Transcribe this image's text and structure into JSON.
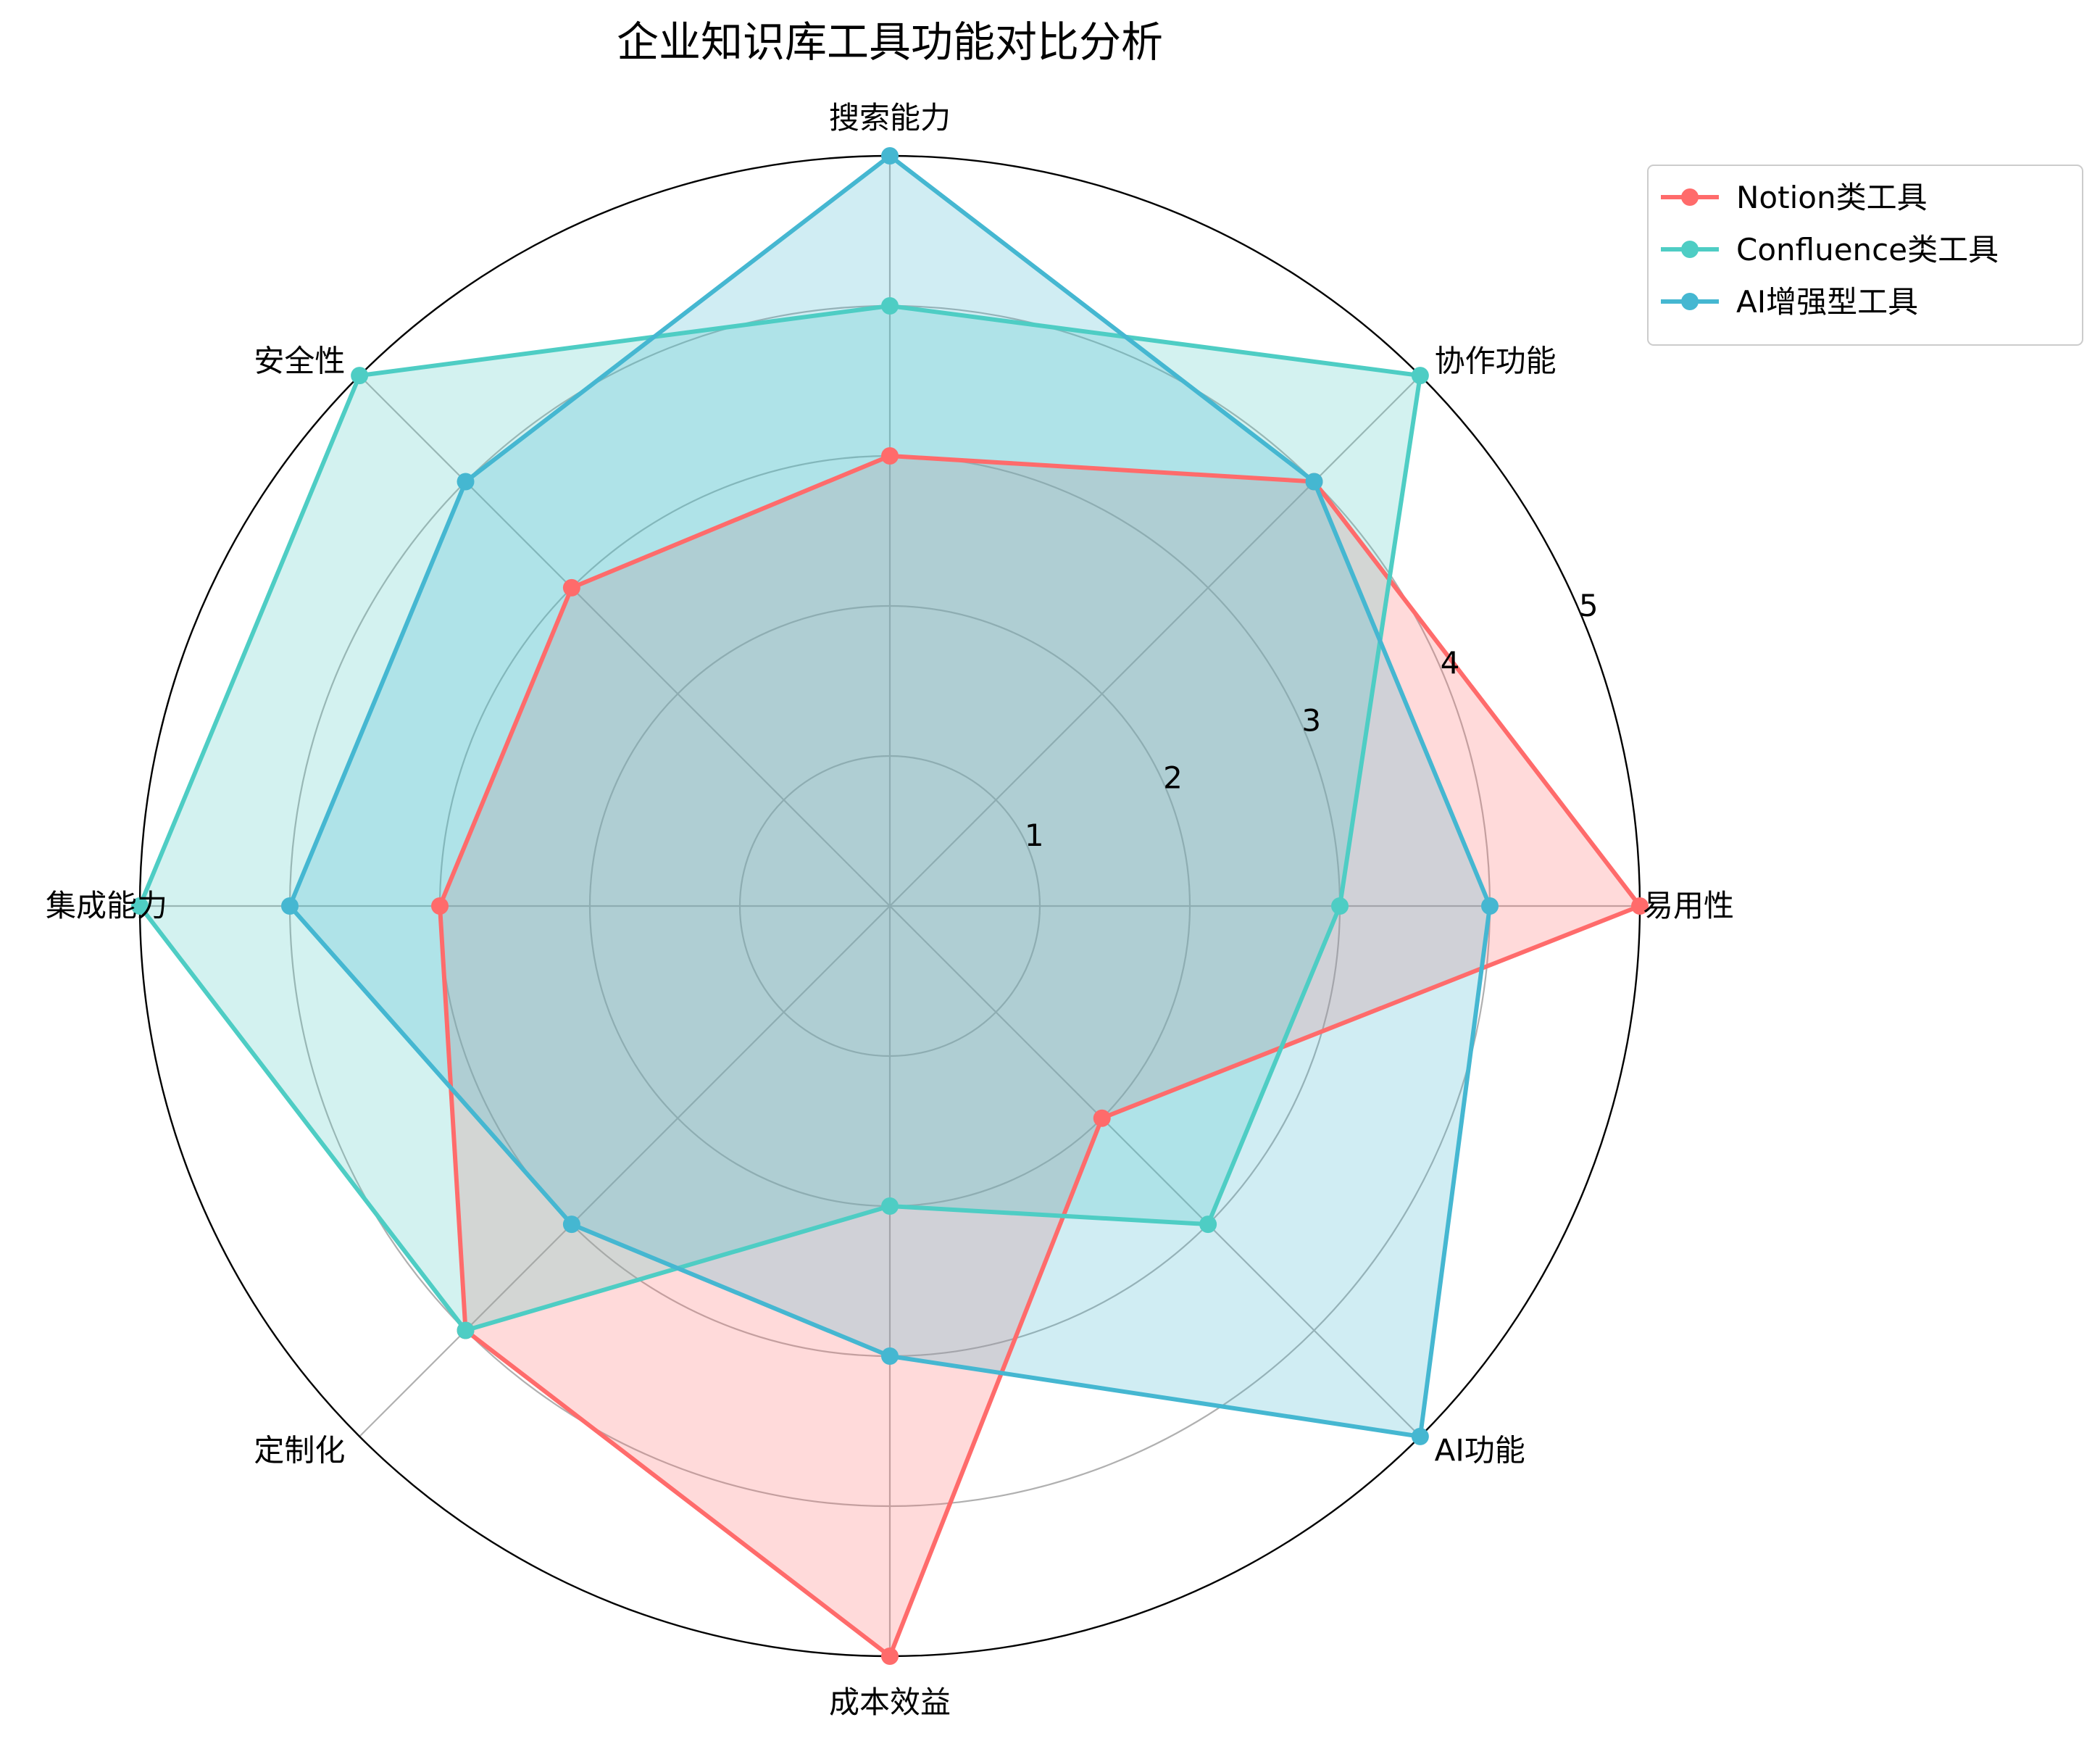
{
  "chart_data": {
    "type": "radar",
    "title": "企业知识库工具功能对比分析",
    "categories": [
      "易用性",
      "协作功能",
      "搜索能力",
      "安全性",
      "集成能力",
      "定制化",
      "成本效益",
      "AI功能"
    ],
    "rlim": [
      0,
      5
    ],
    "rticks": [
      "1",
      "2",
      "3",
      "4",
      "5"
    ],
    "grid": true,
    "legend_position": "top-right outside",
    "series": [
      {
        "name": "Notion类工具",
        "color": "#FF6B6B",
        "values": [
          5,
          4,
          3,
          3,
          3,
          4,
          5,
          2
        ]
      },
      {
        "name": "Confluence类工具",
        "color": "#4ECDC4",
        "values": [
          3,
          5,
          4,
          5,
          5,
          4,
          2,
          3
        ]
      },
      {
        "name": "AI增强型工具",
        "color": "#45B7D1",
        "values": [
          4,
          4,
          5,
          4,
          4,
          3,
          3,
          5
        ]
      }
    ]
  }
}
